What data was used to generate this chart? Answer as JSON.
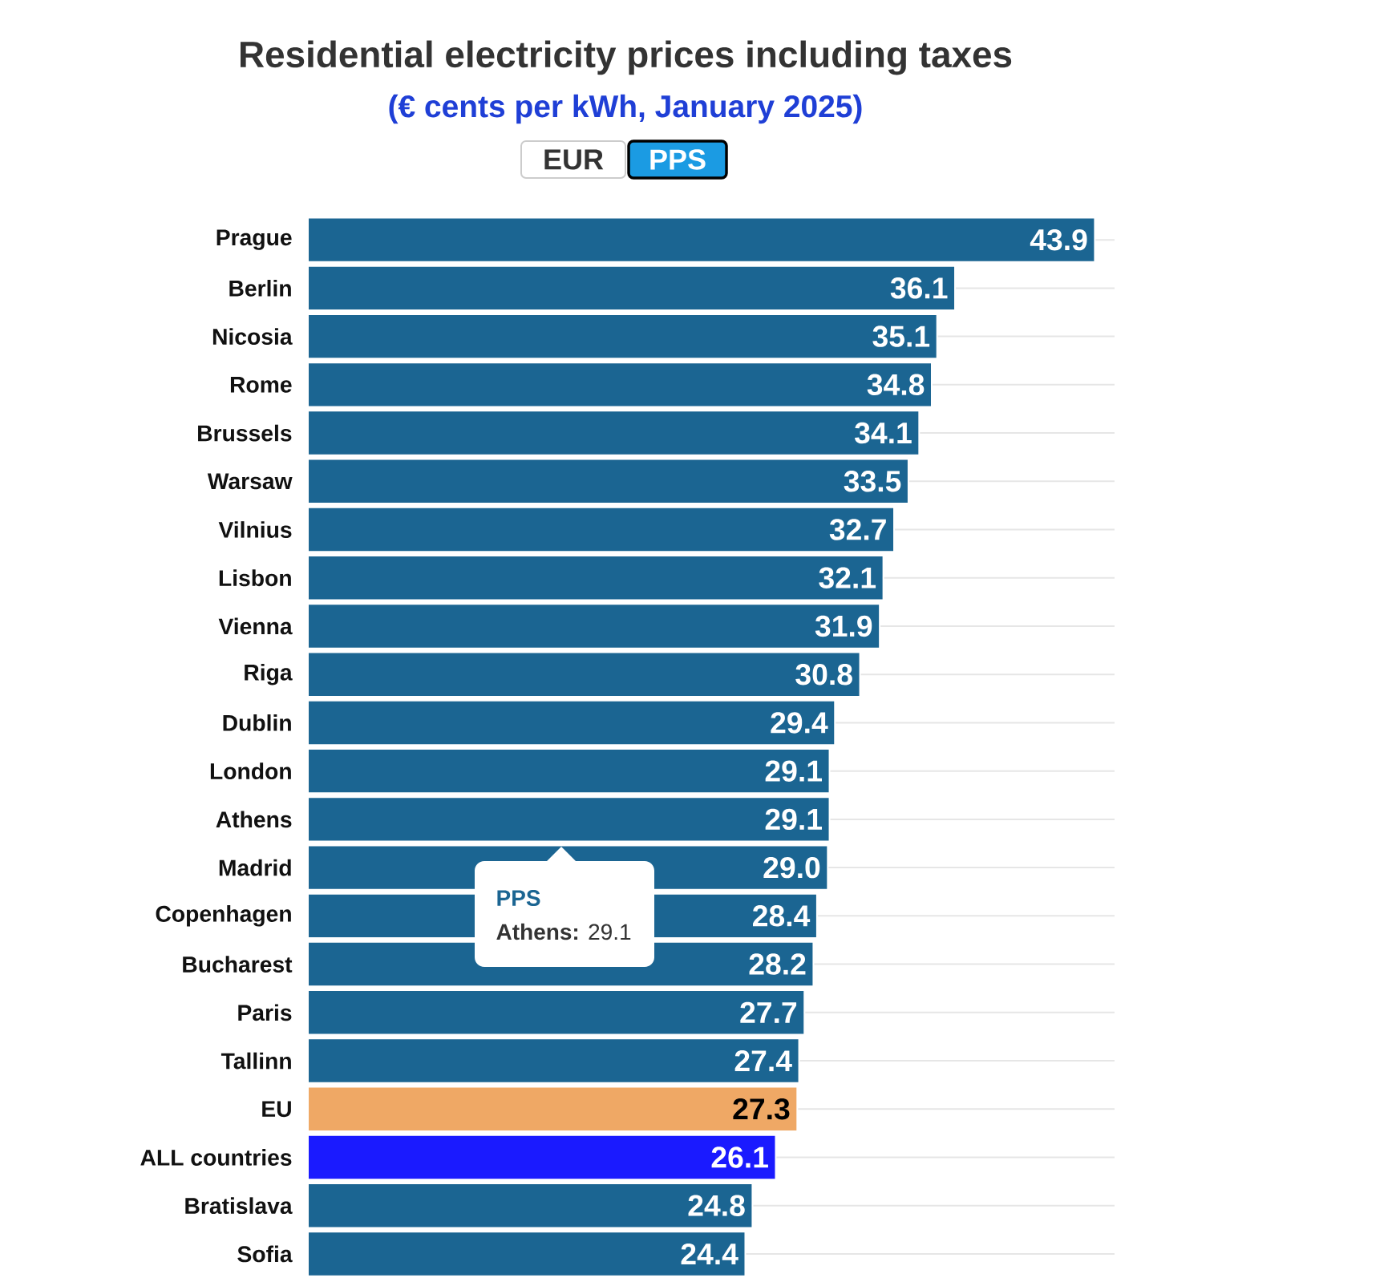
{
  "chart_data": {
    "type": "bar",
    "orientation": "horizontal",
    "title": "Residential electricity prices including taxes",
    "subtitle": "(€ cents per kWh, January 2025)",
    "categories": [
      "Prague",
      "Berlin",
      "Nicosia",
      "Rome",
      "Brussels",
      "Warsaw",
      "Vilnius",
      "Lisbon",
      "Vienna",
      "Riga",
      "Dublin",
      "London",
      "Athens",
      "Madrid",
      "Copenhagen",
      "Bucharest",
      "Paris",
      "Tallinn",
      "EU",
      "ALL countries",
      "Bratislava",
      "Sofia"
    ],
    "values": [
      43.9,
      36.1,
      35.1,
      34.8,
      34.1,
      33.5,
      32.7,
      32.1,
      31.9,
      30.8,
      29.4,
      29.1,
      29.1,
      29.0,
      28.4,
      28.2,
      27.7,
      27.4,
      27.3,
      26.1,
      24.8,
      24.4
    ],
    "value_labels": [
      "43.9",
      "36.1",
      "35.1",
      "34.8",
      "34.1",
      "33.5",
      "32.7",
      "32.1",
      "31.9",
      "30.8",
      "29.4",
      "29.1",
      "29.1",
      "29.0",
      "28.4",
      "28.2",
      "27.7",
      "27.4",
      "27.3",
      "26.1",
      "24.8",
      "24.4"
    ],
    "colors": [
      "#1b6592",
      "#1b6592",
      "#1b6592",
      "#1b6592",
      "#1b6592",
      "#1b6592",
      "#1b6592",
      "#1b6592",
      "#1b6592",
      "#1b6592",
      "#1b6592",
      "#1b6592",
      "#1b6592",
      "#1b6592",
      "#1b6592",
      "#1b6592",
      "#1b6592",
      "#1b6592",
      "#efa865",
      "#1a1aff",
      "#1b6592",
      "#1b6592"
    ],
    "xlim": [
      0,
      45
    ],
    "grid": "y",
    "tick_labels": "y",
    "annotations": [
      "EUR",
      "PPS",
      "PPS",
      "**Athens:** 29.1"
    ]
  }
}
